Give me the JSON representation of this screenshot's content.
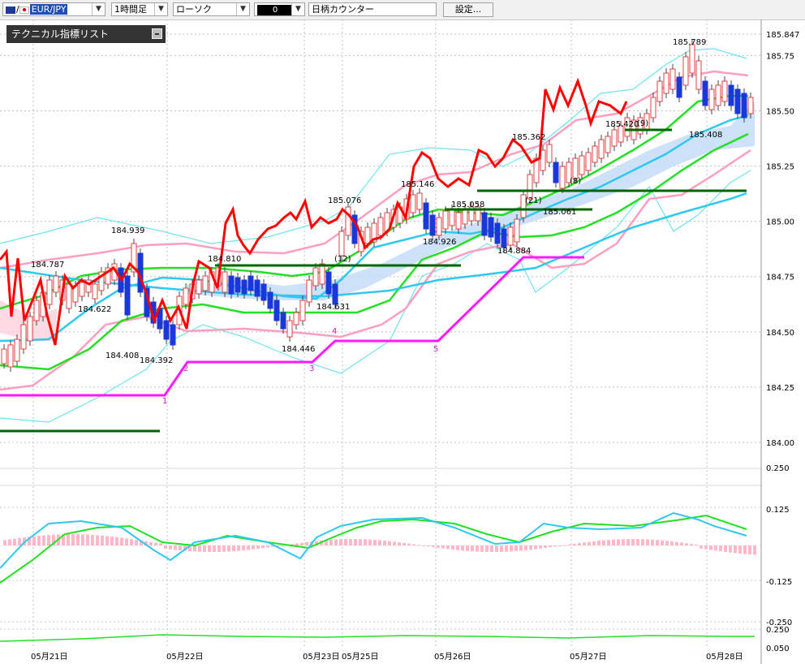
{
  "toolbar": {
    "symbol": "EUR/JPY",
    "timeframe": "1時間足",
    "chart_type": "ローソク",
    "color_label": "0",
    "counter_placeholder": "日柄カウンター",
    "settings_label": "設定..."
  },
  "indicator_panel": {
    "title": "テクニカル指標リスト"
  },
  "colors": {
    "price_line": "#ff0000",
    "bollinger": "#6fe3f0",
    "sigma_band": "#ff9ec0",
    "ma_fast": "#22e022",
    "ma_mid": "#2fc8f0",
    "step_line": "#ff19ff",
    "support_line": "#006400",
    "cloud": "#c4ddf7",
    "macd_hist": "#ffb8c8"
  },
  "chart_data": {
    "type": "line",
    "price_axis": {
      "labels": [
        "185.847",
        "185.75",
        "185.50",
        "185.25",
        "185.00",
        "184.75",
        "184.50",
        "184.25",
        "184.00"
      ],
      "range": [
        184.0,
        185.847
      ]
    },
    "macd_axis": {
      "labels": [
        "0.250",
        "0.125",
        "-0.125",
        "-0.250"
      ]
    },
    "sub_axis": {
      "labels": [
        "0.250",
        "0.050"
      ]
    },
    "x_labels": [
      "05月21日",
      "05月22日",
      "05月23日",
      "05月25日",
      "05月26日",
      "05月27日",
      "05月28日"
    ],
    "annotations": [
      "184.787",
      "184.622",
      "184.939",
      "184.408",
      "184.392",
      "184.810",
      "185.076",
      "184.631",
      "184.446",
      "185.146",
      "185.058",
      "184.926",
      "185.362",
      "184.884",
      "185.061",
      "185.420",
      "185.789",
      "185.408"
    ],
    "count_labels": [
      "1",
      "2",
      "3",
      "4",
      "5"
    ],
    "period_labels": [
      "(12)",
      "(21)",
      "(8)",
      "(9)"
    ]
  }
}
